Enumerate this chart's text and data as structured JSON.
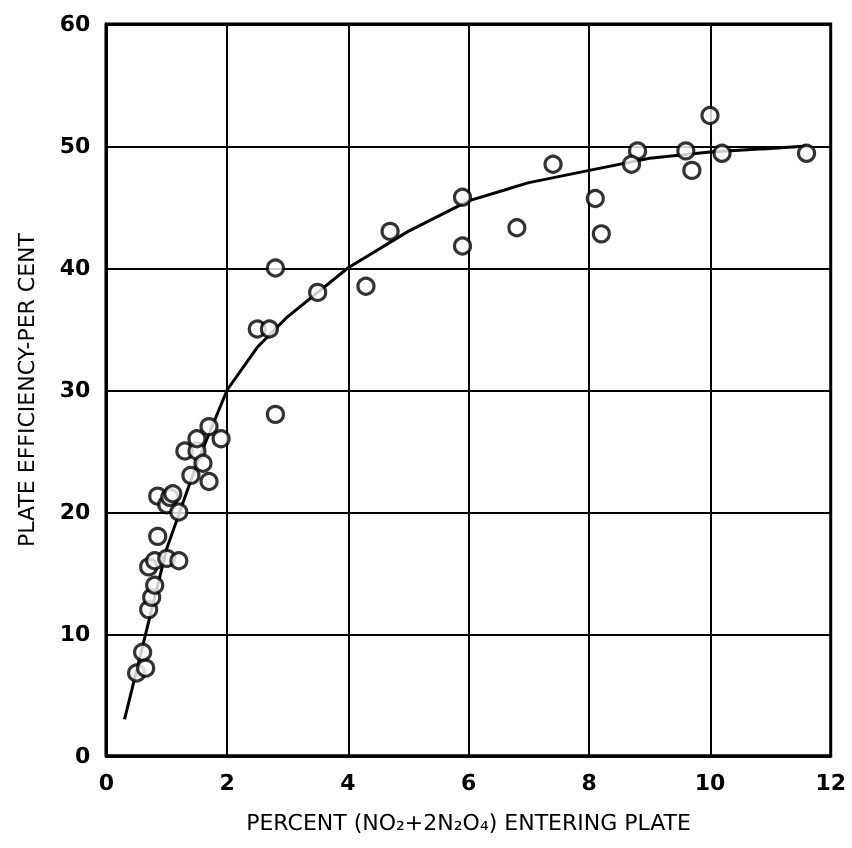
{
  "chart_data": {
    "type": "scatter",
    "xlabel": "PERCENT (NO₂+2N₂O₄) ENTERING PLATE",
    "ylabel": "PLATE EFFICIENCY-PER CENT",
    "xlim": [
      0,
      12
    ],
    "ylim": [
      0,
      60
    ],
    "xticks": [
      0,
      2,
      4,
      6,
      8,
      10,
      12
    ],
    "yticks": [
      0,
      10,
      20,
      30,
      40,
      50,
      60
    ],
    "grid": true,
    "series": [
      {
        "color": "#000000",
        "marker": "circle",
        "x": [
          0.5,
          0.6,
          0.65,
          0.7,
          0.75,
          0.7,
          0.8,
          0.8,
          0.85,
          0.85,
          1.0,
          1.05,
          1.1,
          1.0,
          1.2,
          1.2,
          1.3,
          1.4,
          1.5,
          1.5,
          1.6,
          1.7,
          1.7,
          1.9,
          2.5,
          2.7,
          2.8,
          2.8,
          3.5,
          4.3,
          4.7,
          5.9,
          5.9,
          6.8,
          7.4,
          8.1,
          8.2,
          8.8,
          8.7,
          9.6,
          9.7,
          10.0,
          10.2,
          11.6
        ],
        "values": [
          6.8,
          8.5,
          7.2,
          12,
          13,
          15.5,
          14,
          16,
          18,
          21.3,
          20.6,
          21.2,
          21.5,
          16.2,
          16,
          20,
          25,
          23,
          25,
          26,
          24,
          27,
          22.5,
          26,
          35,
          35,
          28,
          40,
          38,
          38.5,
          43,
          41.8,
          45.8,
          43.3,
          48.5,
          45.7,
          42.8,
          49.6,
          48.5,
          49.6,
          48,
          52.5,
          49.4,
          49.4
        ]
      },
      {
        "type": "line",
        "color": "#000000",
        "marker": "none",
        "x": [
          0.3,
          0.6,
          1,
          1.5,
          2,
          2.5,
          3,
          4,
          5,
          6,
          7,
          8,
          9,
          10,
          11,
          11.6
        ],
        "values": [
          3,
          9,
          17,
          24,
          30,
          33.5,
          36,
          40,
          43,
          45.5,
          47,
          48,
          49,
          49.5,
          49.8,
          50
        ]
      }
    ]
  }
}
